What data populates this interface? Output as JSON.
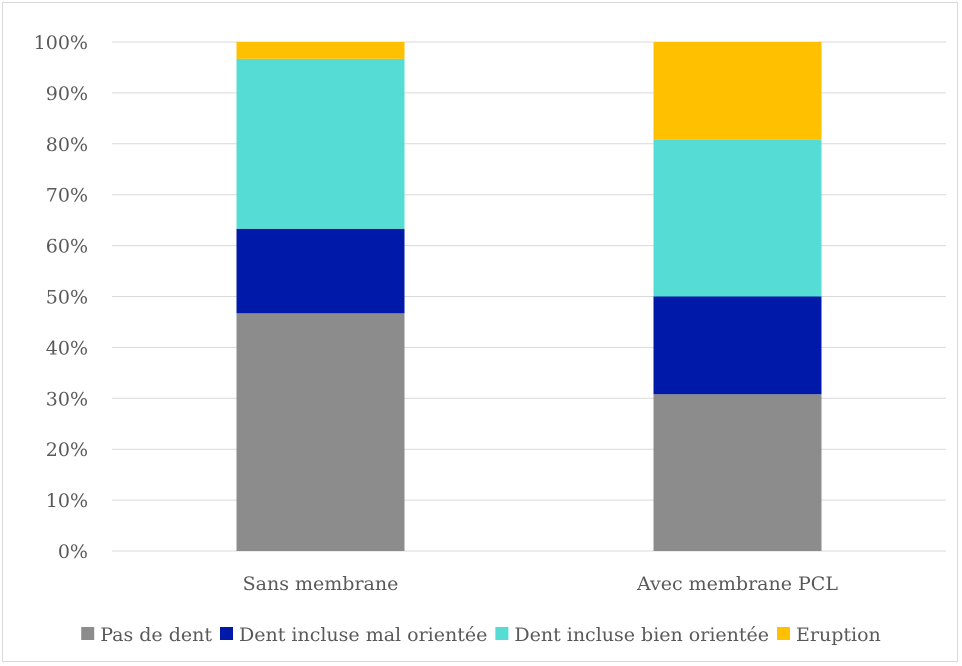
{
  "chart_data": {
    "type": "bar",
    "stacked": true,
    "percent": true,
    "categories": [
      "Sans membrane",
      "Avec membrane PCL"
    ],
    "series": [
      {
        "name": "Pas de dent",
        "values": [
          46.7,
          30.8
        ],
        "color": "#8c8c8c"
      },
      {
        "name": "Dent incluse mal orientée",
        "values": [
          16.6,
          19.2
        ],
        "color": "#0019a8"
      },
      {
        "name": "Dent incluse bien orientée",
        "values": [
          33.4,
          30.8
        ],
        "color": "#55dcd4"
      },
      {
        "name": "Eruption",
        "values": [
          3.3,
          19.2
        ],
        "color": "#ffc000"
      }
    ],
    "yticks": [
      "0%",
      "10%",
      "20%",
      "30%",
      "40%",
      "50%",
      "60%",
      "70%",
      "80%",
      "90%",
      "100%"
    ],
    "ylim": [
      0,
      100
    ],
    "grid": true,
    "legend": "bottom"
  }
}
